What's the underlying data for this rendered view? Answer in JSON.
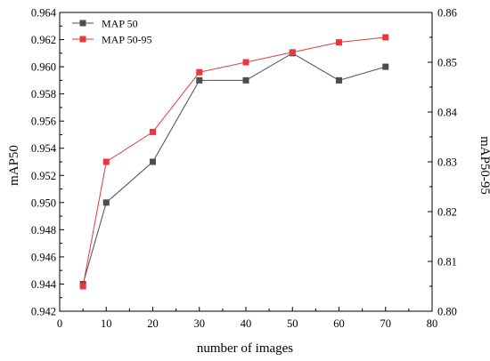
{
  "chart_data": {
    "type": "line",
    "xlabel": "number of images",
    "ylabel": "mAP50",
    "ylabel_right": "mAP50-95",
    "x": [
      5,
      10,
      20,
      30,
      40,
      50,
      60,
      70
    ],
    "xlim": [
      0,
      80
    ],
    "ylim": [
      0.942,
      0.964
    ],
    "ylim_right": [
      0.8,
      0.86
    ],
    "x_ticks": [
      "0",
      "10",
      "20",
      "30",
      "40",
      "50",
      "60",
      "70",
      "80"
    ],
    "y_ticks": [
      "0.942",
      "0.944",
      "0.946",
      "0.948",
      "0.950",
      "0.952",
      "0.954",
      "0.956",
      "0.958",
      "0.960",
      "0.962",
      "0.964"
    ],
    "y_ticks_right": [
      "0.80",
      "0.81",
      "0.82",
      "0.83",
      "0.84",
      "0.85",
      "0.86"
    ],
    "grid": false,
    "legend_position": "top-left",
    "series": [
      {
        "name": "MAP 50",
        "axis": "left",
        "color": "#4d4d4d",
        "marker": "square",
        "values": [
          0.944,
          0.95,
          0.953,
          0.959,
          0.959,
          0.961,
          0.959,
          0.96
        ]
      },
      {
        "name": "MAP 50-95",
        "axis": "right",
        "color": "#e8383c",
        "marker": "square",
        "values": [
          0.805,
          0.83,
          0.836,
          0.848,
          0.85,
          0.852,
          0.854,
          0.855
        ]
      }
    ]
  }
}
